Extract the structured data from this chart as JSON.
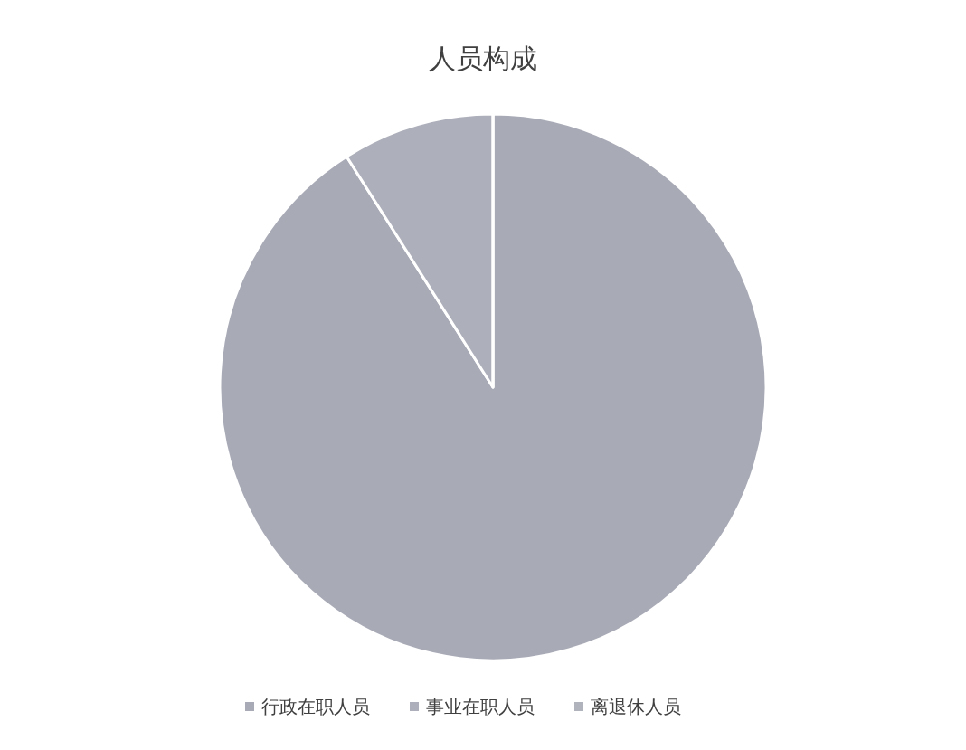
{
  "chart_data": {
    "type": "pie",
    "title": "人员构成",
    "categories": [
      "行政在职人员",
      "事业在职人员",
      "离退休人员"
    ],
    "values": [
      91,
      9,
      0
    ],
    "colors": [
      "#a8aab6",
      "#adafba",
      "#b0b2bc"
    ],
    "legend": "bottom"
  }
}
